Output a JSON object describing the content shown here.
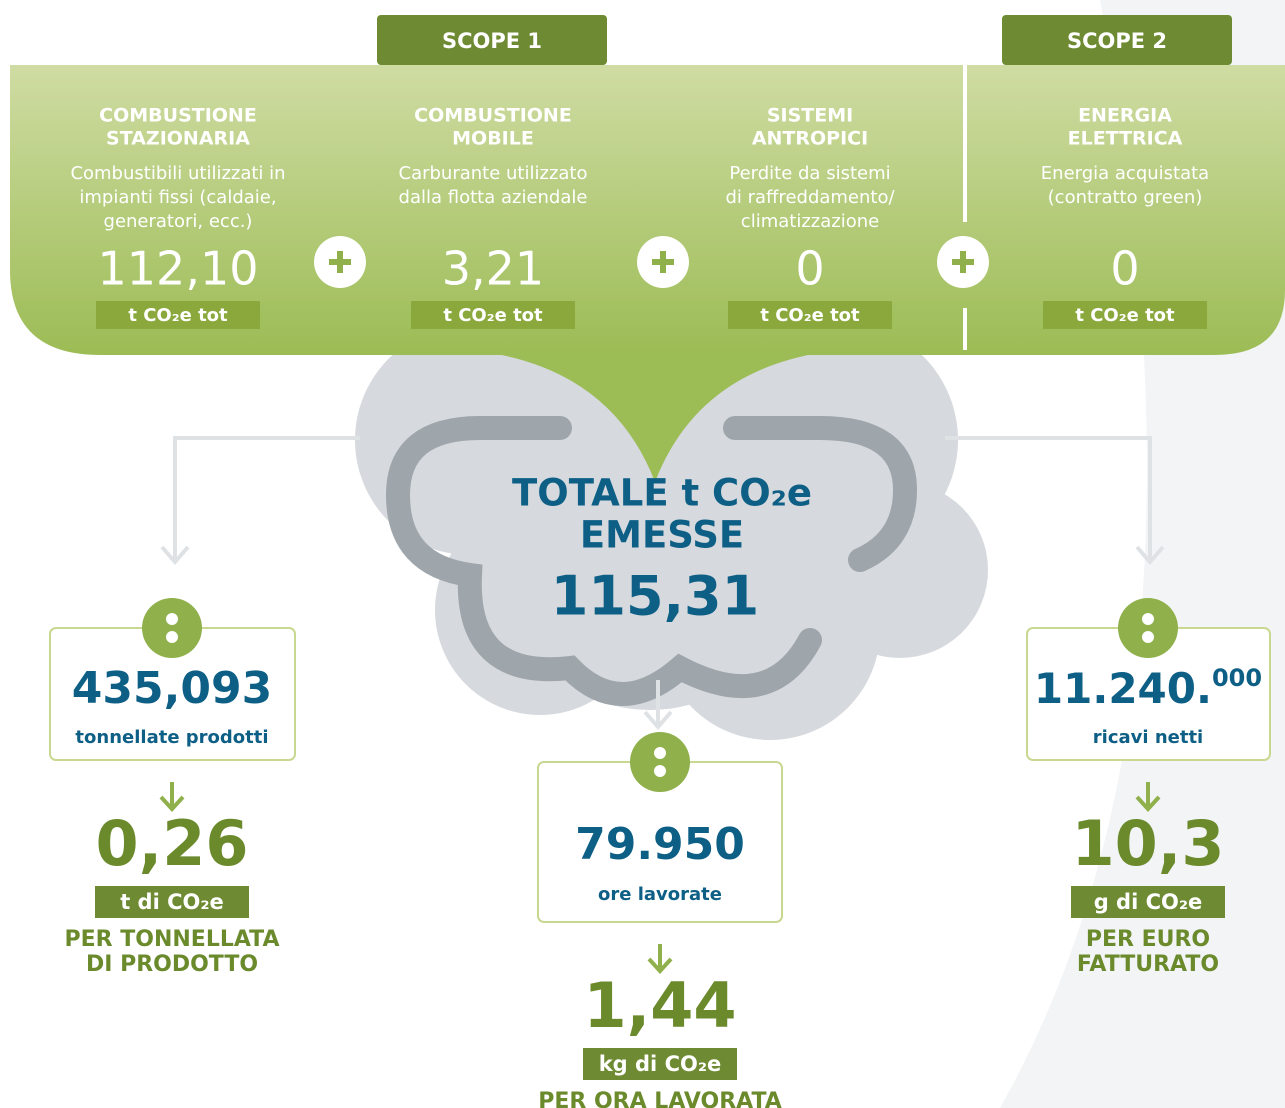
{
  "scopes": [
    "SCOPE 1",
    "SCOPE 2"
  ],
  "sources": [
    {
      "title": [
        "COMBUSTIONE",
        "STAZIONARIA"
      ],
      "description": [
        "Combustibili utilizzati in",
        "impianti fissi (caldaie,",
        "generatori, ecc.)"
      ],
      "value": "112,10",
      "unit": "t CO₂e tot"
    },
    {
      "title": [
        "COMBUSTIONE",
        "MOBILE"
      ],
      "description": [
        "Carburante utilizzato",
        "dalla flotta aziendale"
      ],
      "value": "3,21",
      "unit": "t CO₂e tot"
    },
    {
      "title": [
        "SISTEMI",
        "ANTROPICI"
      ],
      "description": [
        "Perdite da sistemi",
        "di raffreddamento/",
        "climatizzazione"
      ],
      "value": "0",
      "unit": "t CO₂e tot"
    },
    {
      "title": [
        "ENERGIA",
        "ELETTRICA"
      ],
      "description": [
        "Energia acquistata",
        "(contratto green)"
      ],
      "value": "0",
      "unit": "t CO₂e tot"
    }
  ],
  "total": {
    "title": [
      "TOTALE t CO₂e",
      "EMESSE"
    ],
    "value": "115,31"
  },
  "indicators": [
    {
      "divisor": "435,093",
      "divisor_label": "tonnellate prodotti",
      "value": "0,26",
      "unit": "t di CO₂e",
      "label": [
        "PER TONNELLATA",
        "DI PRODOTTO"
      ]
    },
    {
      "divisor": "79.950",
      "divisor_label": "ore lavorate",
      "value": "1,44",
      "unit": "kg di CO₂e",
      "label": [
        "PER ORA LAVORATA"
      ]
    },
    {
      "divisor": {
        "main": "11.240.",
        "sup": "000"
      },
      "divisor_label": "ricavi netti",
      "value": "10,3",
      "unit": "g di CO₂e",
      "label": [
        "PER EURO",
        "FATTURATO"
      ]
    }
  ]
}
